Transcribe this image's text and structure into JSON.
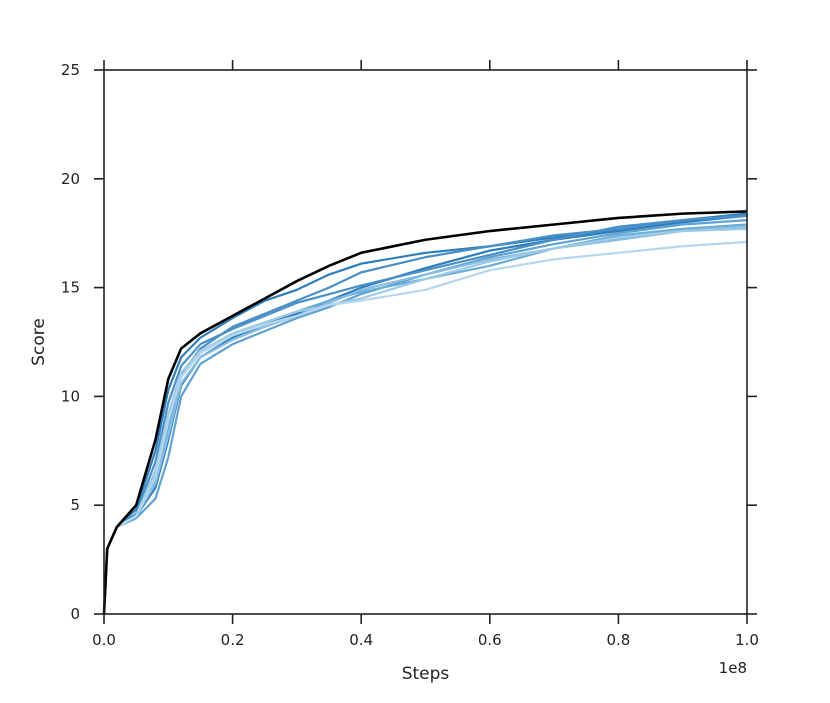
{
  "chart_data": {
    "type": "line",
    "title": "",
    "xlabel": "Steps",
    "ylabel": "Score",
    "x_offset_text": "1e8",
    "xlim": [
      0.0,
      1.0
    ],
    "ylim": [
      0,
      25
    ],
    "x_ticks": [
      "0.0",
      "0.2",
      "0.4",
      "0.6",
      "0.8",
      "1.0"
    ],
    "y_ticks": [
      "0",
      "5",
      "10",
      "15",
      "20",
      "25"
    ],
    "grid": false,
    "legend": "none",
    "series": [
      {
        "color": "#000000",
        "x": [
          0,
          0.005,
          0.02,
          0.05,
          0.08,
          0.1,
          0.12,
          0.15,
          0.2,
          0.25,
          0.3,
          0.35,
          0.4,
          0.5,
          0.6,
          0.7,
          0.8,
          0.9,
          1.0
        ],
        "y": [
          0,
          3.0,
          4.0,
          5.0,
          8.0,
          10.8,
          12.2,
          12.9,
          13.7,
          14.5,
          15.3,
          16.0,
          16.6,
          17.2,
          17.6,
          17.9,
          18.2,
          18.4,
          18.5
        ]
      },
      {
        "color": "#2f7ebc",
        "x": [
          0,
          0.005,
          0.02,
          0.05,
          0.08,
          0.1,
          0.12,
          0.15,
          0.2,
          0.25,
          0.3,
          0.35,
          0.4,
          0.5,
          0.6,
          0.7,
          0.8,
          0.9,
          1.0
        ],
        "y": [
          0,
          3.0,
          4.0,
          4.8,
          7.5,
          10.3,
          11.8,
          12.7,
          13.6,
          14.4,
          14.9,
          15.6,
          16.1,
          16.6,
          16.9,
          17.3,
          17.7,
          18.1,
          18.4
        ]
      },
      {
        "color": "#2f7ebc",
        "x": [
          0,
          0.005,
          0.02,
          0.05,
          0.08,
          0.1,
          0.12,
          0.15,
          0.2,
          0.25,
          0.3,
          0.35,
          0.4,
          0.5,
          0.6,
          0.7,
          0.8,
          0.9,
          1.0
        ],
        "y": [
          0,
          3.0,
          4.0,
          4.5,
          5.8,
          8.0,
          10.5,
          11.8,
          12.7,
          13.3,
          13.8,
          14.4,
          15.0,
          15.9,
          16.7,
          17.2,
          17.6,
          18.0,
          18.3
        ]
      },
      {
        "color": "#4a90c8",
        "x": [
          0,
          0.005,
          0.02,
          0.05,
          0.08,
          0.1,
          0.12,
          0.15,
          0.2,
          0.25,
          0.3,
          0.35,
          0.4,
          0.5,
          0.6,
          0.7,
          0.8,
          0.9,
          1.0
        ],
        "y": [
          0,
          3.0,
          4.0,
          4.5,
          6.5,
          9.0,
          11.0,
          12.2,
          13.2,
          13.8,
          14.4,
          15.0,
          15.7,
          16.4,
          16.9,
          17.4,
          17.7,
          18.1,
          18.3
        ]
      },
      {
        "color": "#4a90c8",
        "x": [
          0,
          0.005,
          0.02,
          0.05,
          0.08,
          0.1,
          0.12,
          0.15,
          0.2,
          0.25,
          0.3,
          0.35,
          0.4,
          0.5,
          0.6,
          0.7,
          0.8,
          0.9,
          1.0
        ],
        "y": [
          0,
          3.0,
          4.0,
          4.6,
          7.0,
          9.7,
          11.4,
          12.4,
          13.1,
          13.7,
          14.3,
          14.7,
          15.1,
          15.8,
          16.5,
          17.2,
          17.8,
          18.1,
          18.3
        ]
      },
      {
        "color": "#5fa2d3",
        "x": [
          0,
          0.005,
          0.02,
          0.05,
          0.08,
          0.1,
          0.12,
          0.15,
          0.2,
          0.25,
          0.3,
          0.35,
          0.4,
          0.5,
          0.6,
          0.7,
          0.8,
          0.9,
          1.0
        ],
        "y": [
          0,
          3.0,
          4.0,
          4.4,
          5.3,
          7.2,
          10.0,
          11.5,
          12.4,
          13.0,
          13.6,
          14.1,
          14.7,
          15.6,
          16.4,
          17.0,
          17.5,
          17.9,
          18.1
        ]
      },
      {
        "color": "#6aaed8",
        "x": [
          0,
          0.005,
          0.02,
          0.05,
          0.08,
          0.1,
          0.12,
          0.15,
          0.2,
          0.25,
          0.3,
          0.35,
          0.4,
          0.5,
          0.6,
          0.7,
          0.8,
          0.9,
          1.0
        ],
        "y": [
          0,
          3.0,
          4.0,
          4.4,
          6.2,
          8.6,
          10.9,
          12.0,
          12.8,
          13.4,
          13.9,
          14.4,
          14.8,
          15.4,
          16.0,
          16.8,
          17.4,
          17.7,
          17.9
        ]
      },
      {
        "color": "#86bde1",
        "x": [
          0,
          0.005,
          0.02,
          0.05,
          0.08,
          0.1,
          0.12,
          0.15,
          0.2,
          0.25,
          0.3,
          0.35,
          0.4,
          0.5,
          0.6,
          0.7,
          0.8,
          0.9,
          1.0
        ],
        "y": [
          0,
          3.0,
          4.0,
          4.5,
          6.0,
          8.2,
          10.6,
          11.8,
          12.6,
          13.2,
          13.7,
          14.3,
          14.9,
          15.6,
          16.3,
          16.8,
          17.2,
          17.6,
          17.8
        ]
      },
      {
        "color": "#9ecae6",
        "x": [
          0,
          0.005,
          0.02,
          0.05,
          0.08,
          0.1,
          0.12,
          0.15,
          0.2,
          0.25,
          0.3,
          0.35,
          0.4,
          0.5,
          0.6,
          0.7,
          0.8,
          0.9,
          1.0
        ],
        "y": [
          0,
          3.0,
          4.0,
          4.5,
          6.6,
          9.2,
          11.1,
          12.1,
          12.9,
          13.4,
          13.9,
          14.2,
          14.5,
          15.4,
          16.2,
          16.8,
          17.3,
          17.6,
          17.7
        ]
      },
      {
        "color": "#b5d6ee",
        "x": [
          0,
          0.005,
          0.02,
          0.05,
          0.08,
          0.1,
          0.12,
          0.15,
          0.2,
          0.25,
          0.3,
          0.35,
          0.4,
          0.5,
          0.6,
          0.7,
          0.8,
          0.9,
          1.0
        ],
        "y": [
          0,
          3.0,
          4.0,
          4.5,
          6.3,
          8.9,
          10.9,
          12.0,
          12.8,
          13.3,
          13.7,
          14.2,
          14.4,
          14.9,
          15.8,
          16.3,
          16.6,
          16.9,
          17.1
        ]
      }
    ]
  }
}
